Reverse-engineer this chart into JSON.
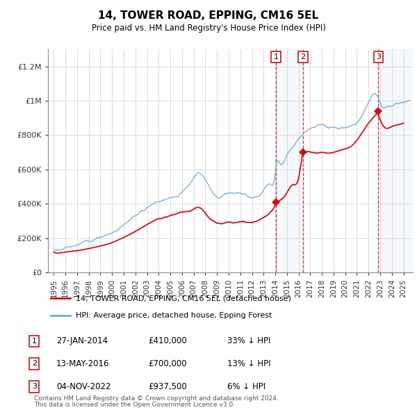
{
  "title": "14, TOWER ROAD, EPPING, CM16 5EL",
  "subtitle": "Price paid vs. HM Land Registry's House Price Index (HPI)",
  "ylabel_ticks": [
    "£0",
    "£200K",
    "£400K",
    "£600K",
    "£800K",
    "£1M",
    "£1.2M"
  ],
  "ytick_values": [
    0,
    200000,
    400000,
    600000,
    800000,
    1000000,
    1200000
  ],
  "ylim": [
    0,
    1300000
  ],
  "hpi_color": "#6fa8d4",
  "price_color": "#cc1111",
  "transactions": [
    {
      "date_num": 2014.07,
      "price": 410000,
      "label": "1"
    },
    {
      "date_num": 2016.37,
      "price": 700000,
      "label": "2"
    },
    {
      "date_num": 2022.84,
      "price": 937500,
      "label": "3"
    }
  ],
  "vline_dates": [
    2014.07,
    2016.37,
    2022.84
  ],
  "vspan_ranges": [
    [
      2014.07,
      2016.37
    ],
    [
      2022.84,
      2025.8
    ]
  ],
  "legend_entries": [
    "14, TOWER ROAD, EPPING, CM16 5EL (detached house)",
    "HPI: Average price, detached house, Epping Forest"
  ],
  "table_rows": [
    {
      "num": "1",
      "date": "27-JAN-2014",
      "price": "£410,000",
      "pct": "33% ↓ HPI"
    },
    {
      "num": "2",
      "date": "13-MAY-2016",
      "price": "£700,000",
      "pct": "13% ↓ HPI"
    },
    {
      "num": "3",
      "date": "04-NOV-2022",
      "price": "£937,500",
      "pct": "6% ↓ HPI"
    }
  ],
  "footer": [
    "Contains HM Land Registry data © Crown copyright and database right 2024.",
    "This data is licensed under the Open Government Licence v3.0."
  ],
  "xlim": [
    1994.5,
    2025.8
  ],
  "xtick_years": [
    1995,
    1996,
    1997,
    1998,
    1999,
    2000,
    2001,
    2002,
    2003,
    2004,
    2005,
    2006,
    2007,
    2008,
    2009,
    2010,
    2011,
    2012,
    2013,
    2014,
    2015,
    2016,
    2017,
    2018,
    2019,
    2020,
    2021,
    2022,
    2023,
    2024,
    2025
  ]
}
